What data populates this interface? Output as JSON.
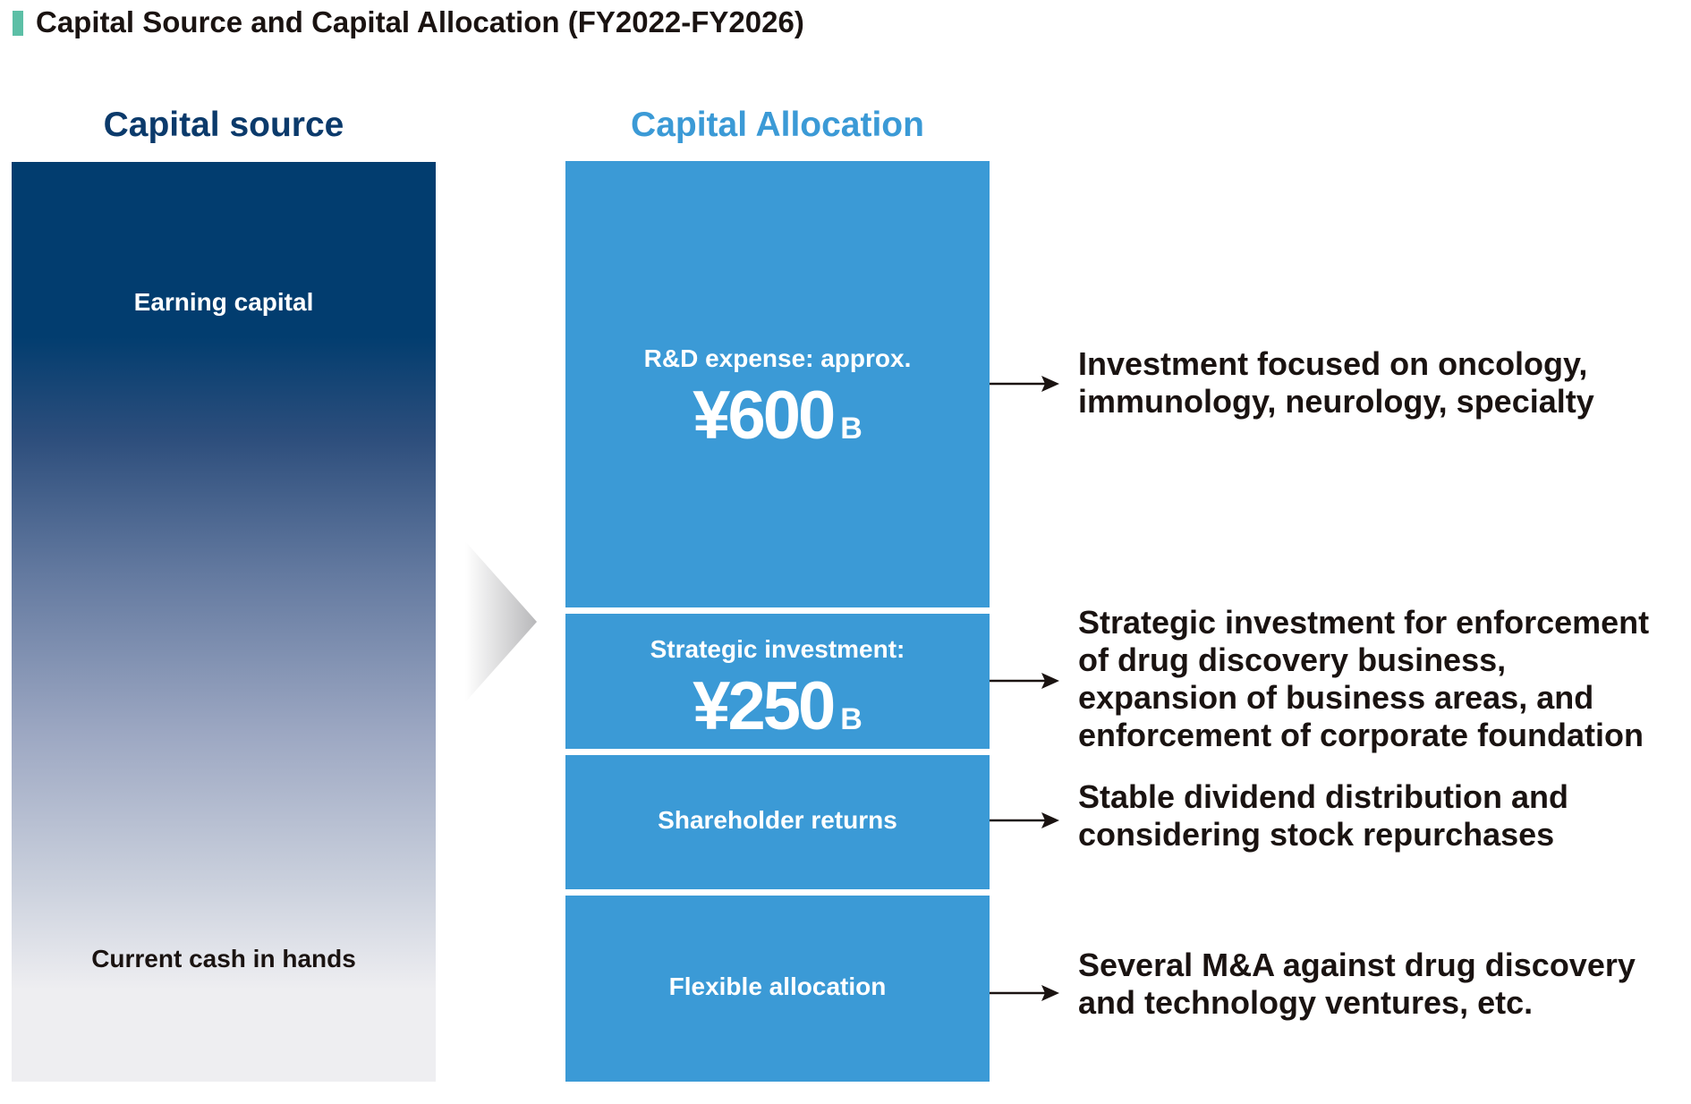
{
  "title": "Capital Source and Capital Allocation (FY2022-FY2026)",
  "colors": {
    "title_marker": "#5cbfa6",
    "source_dark": "#023d6f",
    "source_light": "#eeeef1",
    "allocation_blue": "#3b9ad6",
    "source_heading": "#0b3a6b",
    "text_dark": "#1a1311"
  },
  "capital_source": {
    "heading": "Capital source",
    "top_label": "Earning capital",
    "bottom_label": "Current cash in hands"
  },
  "capital_allocation": {
    "heading": "Capital Allocation",
    "blocks": [
      {
        "label": "R&D expense: approx.",
        "amount": "¥600",
        "unit": "B",
        "description": [
          "Investment focused on oncology,",
          "immunology, neurology, specialty"
        ]
      },
      {
        "label": "Strategic investment:",
        "amount": "¥250",
        "unit": "B",
        "description": [
          "Strategic investment for enforcement",
          "of drug discovery business,",
          "expansion of business areas, and",
          "enforcement of corporate foundation"
        ]
      },
      {
        "label": "Shareholder returns",
        "description": [
          "Stable dividend distribution and",
          "considering stock repurchases"
        ]
      },
      {
        "label": "Flexible allocation",
        "description": [
          "Several M&A against drug discovery",
          "and technology ventures, etc."
        ]
      }
    ]
  }
}
